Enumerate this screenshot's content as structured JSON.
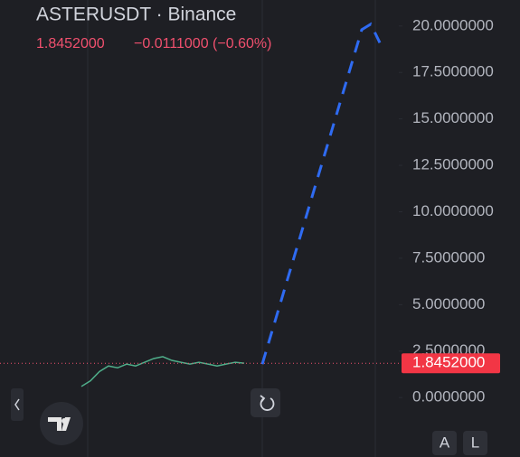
{
  "chart_data": {
    "type": "line",
    "title": "ASTERUSDT · Binance",
    "last_price": {
      "value": 1.8452,
      "label": "1.8452000"
    },
    "change": "−0.0111000 (−0.60%)",
    "xlim": [
      -9,
      35
    ],
    "ylim": [
      -3.2,
      21.4
    ],
    "yticks": [
      {
        "value": 20,
        "label": "20.0000000"
      },
      {
        "value": 17.5,
        "label": "17.5000000"
      },
      {
        "value": 15,
        "label": "15.0000000"
      },
      {
        "value": 12.5,
        "label": "12.5000000"
      },
      {
        "value": 10,
        "label": "10.0000000"
      },
      {
        "value": 7.5,
        "label": "7.5000000"
      },
      {
        "value": 5,
        "label": "5.0000000"
      },
      {
        "value": 2.5,
        "label": "2.5000000"
      },
      {
        "value": 0,
        "label": "0.0000000"
      }
    ],
    "series": [
      {
        "color": "#4fae8a",
        "dashed": false,
        "x": [
          0,
          1,
          2,
          3,
          4,
          5,
          6,
          7,
          8,
          9,
          10,
          11,
          12,
          13,
          14,
          15,
          16,
          17,
          18
        ],
        "values": [
          0.6,
          0.9,
          1.4,
          1.7,
          1.6,
          1.8,
          1.7,
          1.9,
          2.1,
          2.2,
          2.0,
          1.9,
          1.8,
          1.9,
          1.8,
          1.7,
          1.8,
          1.9,
          1.85
        ]
      },
      {
        "color": "#2f6bf2",
        "dashed": true,
        "x": [
          20,
          31,
          32,
          33
        ],
        "values": [
          1.8,
          19.8,
          20.1,
          19.1
        ]
      }
    ],
    "buttons": [
      "A",
      "L"
    ]
  }
}
